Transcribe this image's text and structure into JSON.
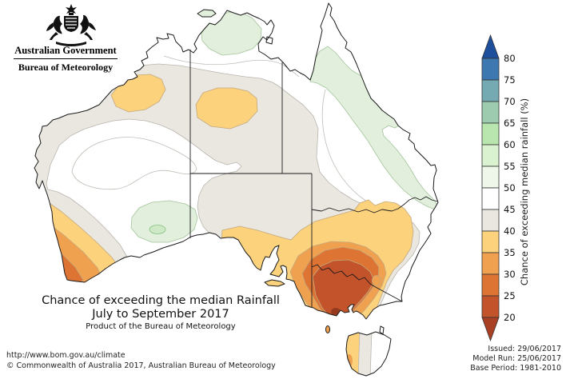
{
  "header": {
    "gov": "Australian Government",
    "bureau": "Bureau of Meteorology",
    "crest_icon": "australian-coat-of-arms"
  },
  "title": {
    "line1": "Chance of exceeding the median Rainfall",
    "line2": "July to September 2017",
    "line3": "Product of the Bureau of Meteorology"
  },
  "legend": {
    "axis_label": "Chance of exceeding median rainfall (%)",
    "tick_labels": [
      "80",
      "75",
      "70",
      "65",
      "60",
      "55",
      "50",
      "45",
      "40",
      "35",
      "30",
      "25",
      "20"
    ],
    "arrow_top_color": "#1e4f9c",
    "arrow_bottom_color": "#a93f23",
    "box_colors_top_to_bottom": [
      "#3e78b0",
      "#76aab2",
      "#9ccbaf",
      "#b8e6ae",
      "#dbf2d0",
      "#eff7ea",
      "#ffffff",
      "#eae6e0",
      "#fcd27d",
      "#f0a150",
      "#dd7433",
      "#c2532b"
    ]
  },
  "palette": {
    "p45": "#ffffff",
    "p40": "#eae6e0",
    "p35": "#fcd27d",
    "p30": "#f0a150",
    "p25": "#dd7433",
    "p20": "#c2532b",
    "spot": "#963a1e",
    "mapGreen": "#e2efdc",
    "mapGreen2": "#cfe9c6"
  },
  "footer": {
    "url": "http://www.bom.gov.au/climate",
    "copyright": "© Commonwealth of Australia 2017, Australian Bureau of Meteorology",
    "issued": "Issued: 29/06/2017",
    "model_run": "Model Run: 25/06/2017",
    "base_period": "Base Period: 1981-2010"
  }
}
